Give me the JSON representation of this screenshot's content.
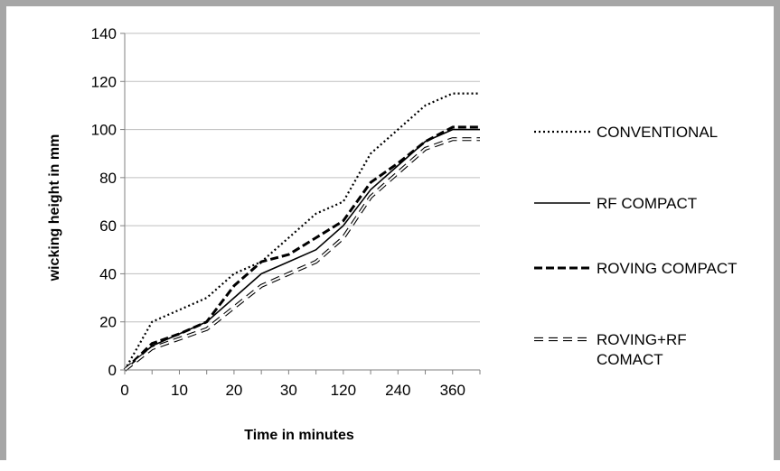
{
  "chart_data": {
    "type": "line",
    "title": "",
    "xlabel": "Time in minutes",
    "ylabel": "wicking height in mm",
    "x_tick_labels": [
      "0",
      "10",
      "20",
      "30",
      "120",
      "240",
      "360"
    ],
    "x": [
      "0",
      "5",
      "10",
      "15",
      "20",
      "25",
      "30",
      "35",
      "120",
      "180",
      "240",
      "300",
      "360",
      "420"
    ],
    "ylim": [
      0,
      140
    ],
    "y_ticks": [
      0,
      20,
      40,
      60,
      80,
      100,
      120,
      140
    ],
    "grid": "horizontal",
    "legend_position": "right",
    "series": [
      {
        "name": "CONVENTIONAL",
        "style": "dotted",
        "color": "#000000",
        "values": [
          0,
          20,
          25,
          30,
          40,
          45,
          55,
          65,
          70,
          90,
          100,
          110,
          115,
          115
        ]
      },
      {
        "name": "RF COMPACT",
        "style": "solid",
        "color": "#000000",
        "values": [
          0,
          10,
          15,
          20,
          30,
          40,
          45,
          50,
          60,
          75,
          85,
          95,
          100,
          100
        ]
      },
      {
        "name": "ROVING COMPACT",
        "style": "dashed",
        "color": "#000000",
        "values": [
          0,
          11,
          15,
          20,
          35,
          45,
          48,
          55,
          62,
          78,
          86,
          95,
          101,
          101
        ]
      },
      {
        "name": "ROVING+RF COMACT",
        "style": "double-dashed",
        "color": "#000000",
        "values": [
          0,
          9,
          13,
          17,
          26,
          35,
          40,
          45,
          55,
          72,
          82,
          92,
          96,
          96
        ]
      }
    ]
  }
}
